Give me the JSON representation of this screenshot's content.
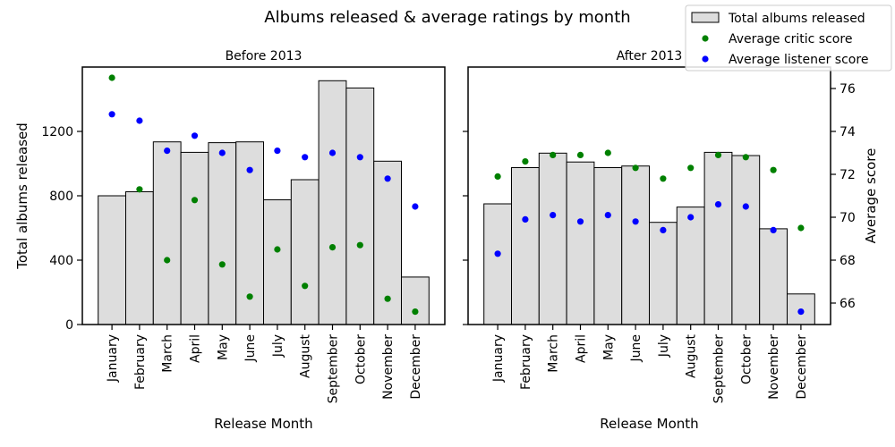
{
  "chart_data": {
    "type": "bar",
    "title": "Albums released & average ratings by month",
    "categories": [
      "January",
      "February",
      "March",
      "April",
      "May",
      "June",
      "July",
      "August",
      "September",
      "October",
      "November",
      "December"
    ],
    "ylabel_left": "Total albums released",
    "ylabel_right": "Average score",
    "xlabel": "Release Month",
    "left_ylim": [
      0,
      1600
    ],
    "left_ticks": [
      0,
      400,
      800,
      1200
    ],
    "right_ylim": [
      65,
      77
    ],
    "right_ticks": [
      66,
      68,
      70,
      72,
      74,
      76
    ],
    "legend": {
      "position": "top-right",
      "entries": [
        "Total albums released",
        "Average critic score",
        "Average listener score"
      ]
    },
    "colors": {
      "bar_fill": "#dddddd",
      "bar_edge": "#000000",
      "critic": "#008000",
      "listener": "#0000ff"
    },
    "panels": [
      {
        "title": "Before 2013",
        "total_albums": [
          800,
          825,
          1135,
          1070,
          1130,
          1135,
          775,
          900,
          1515,
          1470,
          1015,
          295
        ],
        "critic_score": [
          76.5,
          71.3,
          68.0,
          70.8,
          67.8,
          66.3,
          68.5,
          66.8,
          68.6,
          68.7,
          66.2,
          65.6
        ],
        "listener_score": [
          74.8,
          74.5,
          73.1,
          73.8,
          73.0,
          72.2,
          73.1,
          72.8,
          73.0,
          72.8,
          71.8,
          70.5
        ]
      },
      {
        "title": "After 2013",
        "total_albums": [
          750,
          975,
          1065,
          1010,
          975,
          985,
          635,
          730,
          1070,
          1050,
          595,
          190
        ],
        "critic_score": [
          71.9,
          72.6,
          72.9,
          72.9,
          73.0,
          72.3,
          71.8,
          72.3,
          72.9,
          72.8,
          72.2,
          69.5
        ],
        "listener_score": [
          68.3,
          69.9,
          70.1,
          69.8,
          70.1,
          69.8,
          69.4,
          70.0,
          70.6,
          70.5,
          69.4,
          65.6
        ]
      }
    ]
  }
}
